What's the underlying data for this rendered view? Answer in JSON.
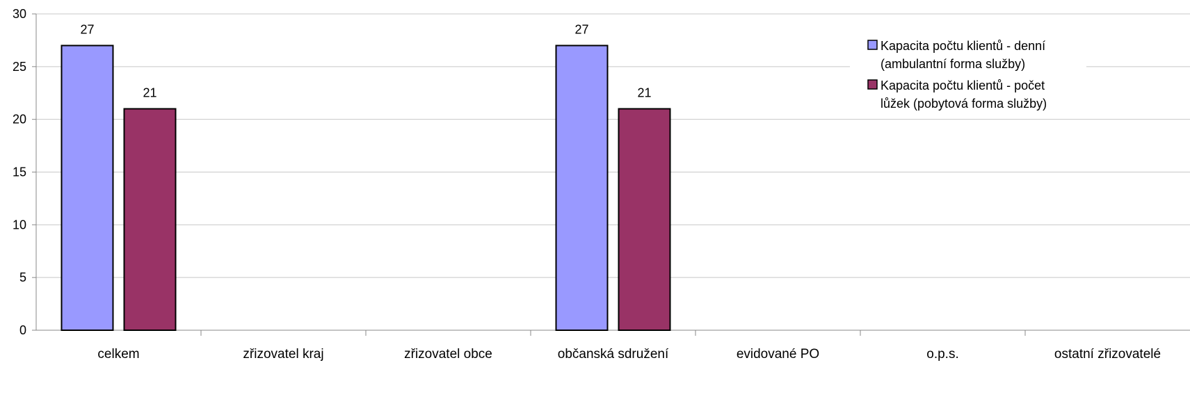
{
  "chart_data": {
    "type": "bar",
    "categories": [
      "celkem",
      "zřizovatel kraj",
      "zřizovatel obce",
      "občanská sdružení",
      "evidované PO",
      "o.p.s.",
      "ostatní zřizovatelé"
    ],
    "series": [
      {
        "name": "Kapacita počtu klientů - denní (ambulantní forma služby)",
        "legend_lines": [
          "Kapacita počtu klientů - denní",
          "(ambulantní forma služby)"
        ],
        "values": [
          27,
          null,
          null,
          27,
          null,
          null,
          null
        ],
        "color": "#9999ff"
      },
      {
        "name": "Kapacita počtu klientů - počet lůžek (pobytová forma služby)",
        "legend_lines": [
          "Kapacita počtu klientů - počet",
          "lůžek (pobytová forma služby)"
        ],
        "values": [
          21,
          null,
          null,
          21,
          null,
          null,
          null
        ],
        "color": "#993366"
      }
    ],
    "ylim": [
      0,
      30
    ],
    "yticks": [
      "0",
      "5",
      "10",
      "15",
      "20",
      "25",
      "30"
    ],
    "grid": true,
    "legend_position": "top-right",
    "data_labels": true
  }
}
